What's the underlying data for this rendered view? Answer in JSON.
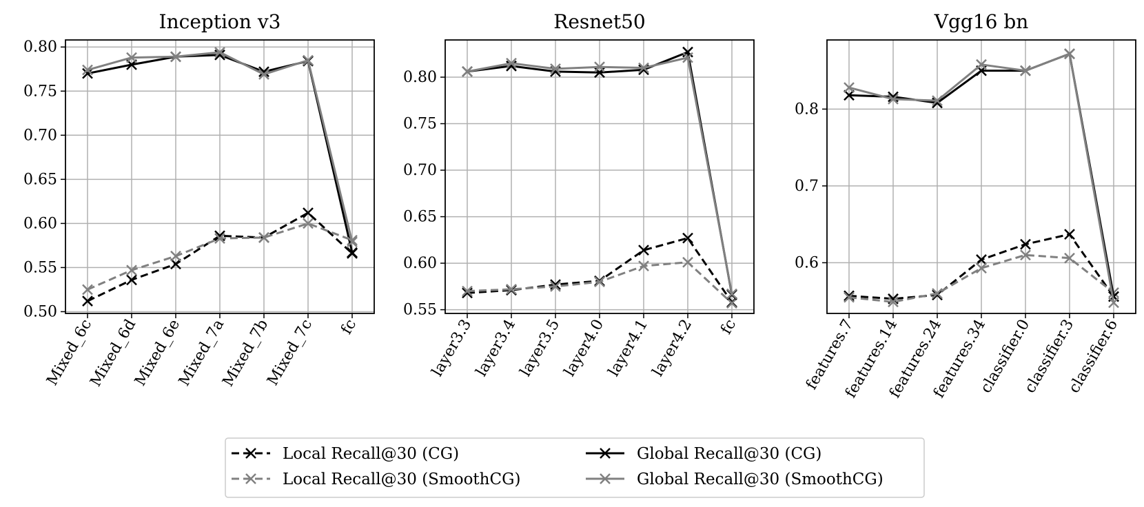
{
  "colors": {
    "cg": "#000000",
    "smooth": "#808080",
    "grid": "#b0b0b0",
    "frame": "#000000"
  },
  "legend": {
    "entries": [
      {
        "label": "Local Recall@30 (CG)",
        "color": "#000000",
        "dashed": true
      },
      {
        "label": "Local Recall@30 (SmoothCG)",
        "color": "#808080",
        "dashed": true
      },
      {
        "label": "Global Recall@30 (CG)",
        "color": "#000000",
        "dashed": false
      },
      {
        "label": "Global Recall@30 (SmoothCG)",
        "color": "#808080",
        "dashed": false
      }
    ]
  },
  "chart_data": [
    {
      "type": "line",
      "title": "Inception v3",
      "categories": [
        "Mixed_6c",
        "Mixed_6d",
        "Mixed_6e",
        "Mixed_7a",
        "Mixed_7b",
        "Mixed_7c",
        "fc"
      ],
      "ylim": [
        0.498,
        0.808
      ],
      "yticks": [
        0.5,
        0.55,
        0.6,
        0.65,
        0.7,
        0.75,
        0.8
      ],
      "ytick_labels": [
        "0.50",
        "0.55",
        "0.60",
        "0.65",
        "0.70",
        "0.75",
        "0.80"
      ],
      "series": [
        {
          "name": "Local Recall@30 (CG)",
          "values": [
            0.512,
            0.536,
            0.554,
            0.586,
            0.584,
            0.612,
            0.566
          ]
        },
        {
          "name": "Local Recall@30 (SmoothCG)",
          "values": [
            0.525,
            0.547,
            0.563,
            0.583,
            0.584,
            0.6,
            0.581
          ]
        },
        {
          "name": "Global Recall@30 (CG)",
          "values": [
            0.77,
            0.78,
            0.789,
            0.791,
            0.772,
            0.784,
            0.567
          ]
        },
        {
          "name": "Global Recall@30 (SmoothCG)",
          "values": [
            0.774,
            0.788,
            0.789,
            0.794,
            0.769,
            0.785,
            0.579
          ]
        }
      ]
    },
    {
      "type": "line",
      "title": "Resnet50",
      "categories": [
        "layer3.3",
        "layer3.4",
        "layer3.5",
        "layer4.0",
        "layer4.1",
        "layer4.2",
        "fc"
      ],
      "ylim": [
        0.546,
        0.84
      ],
      "yticks": [
        0.55,
        0.6,
        0.65,
        0.7,
        0.75,
        0.8
      ],
      "ytick_labels": [
        "0.55",
        "0.60",
        "0.65",
        "0.70",
        "0.75",
        "0.80"
      ],
      "series": [
        {
          "name": "Local Recall@30 (CG)",
          "values": [
            0.568,
            0.571,
            0.577,
            0.581,
            0.614,
            0.627,
            0.558
          ]
        },
        {
          "name": "Local Recall@30 (SmoothCG)",
          "values": [
            0.57,
            0.572,
            0.575,
            0.58,
            0.597,
            0.601,
            0.557
          ]
        },
        {
          "name": "Global Recall@30 (CG)",
          "values": [
            0.806,
            0.812,
            0.806,
            0.805,
            0.808,
            0.827,
            0.566
          ]
        },
        {
          "name": "Global Recall@30 (SmoothCG)",
          "values": [
            0.806,
            0.815,
            0.809,
            0.811,
            0.81,
            0.821,
            0.567
          ]
        }
      ]
    },
    {
      "type": "line",
      "title": "Vgg16 bn",
      "categories": [
        "features.7",
        "features.14",
        "features.24",
        "features.34",
        "classifier.0",
        "classifier.3",
        "classifier.6"
      ],
      "ylim": [
        0.534,
        0.89
      ],
      "yticks": [
        0.6,
        0.7,
        0.8
      ],
      "ytick_labels": [
        "0.6",
        "0.7",
        "0.8"
      ],
      "series": [
        {
          "name": "Local Recall@30 (CG)",
          "values": [
            0.557,
            0.553,
            0.558,
            0.604,
            0.624,
            0.637,
            0.556
          ]
        },
        {
          "name": "Local Recall@30 (SmoothCG)",
          "values": [
            0.555,
            0.549,
            0.56,
            0.593,
            0.61,
            0.606,
            0.561
          ]
        },
        {
          "name": "Global Recall@30 (CG)",
          "values": [
            0.818,
            0.816,
            0.808,
            0.85,
            0.85,
            0.872,
            0.556
          ]
        },
        {
          "name": "Global Recall@30 (SmoothCG)",
          "values": [
            0.828,
            0.813,
            0.811,
            0.858,
            0.85,
            0.872,
            0.548
          ]
        }
      ]
    }
  ]
}
